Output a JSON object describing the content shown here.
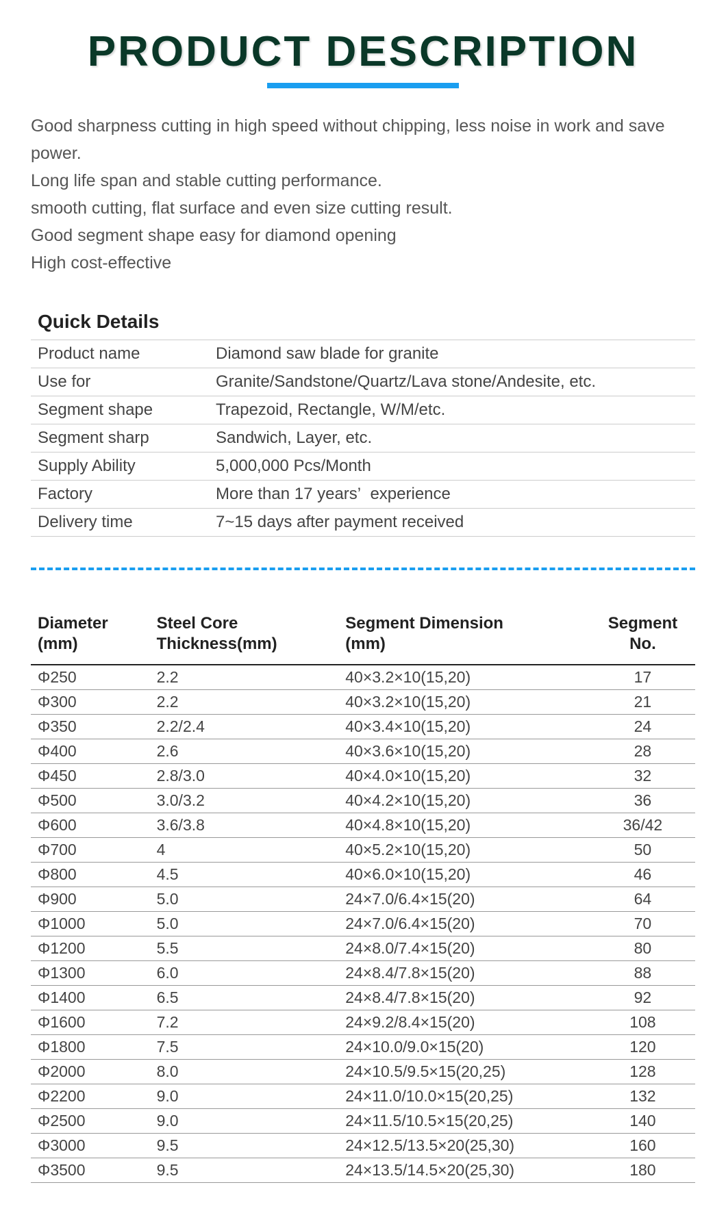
{
  "title": "PRODUCT DESCRIPTION",
  "description_lines": [
    "Good sharpness cutting in high speed without chipping, less noise in work and save power.",
    "Long life span and stable cutting performance.",
    "smooth cutting, flat surface and even size cutting result.",
    "Good segment shape easy for diamond opening",
    "High cost-effective"
  ],
  "quick_details": {
    "heading": "Quick Details",
    "rows": [
      {
        "label": "Product name",
        "value": "Diamond saw blade for granite"
      },
      {
        "label": "Use for",
        "value": "Granite/Sandstone/Quartz/Lava stone/Andesite, etc."
      },
      {
        "label": "Segment shape",
        "value": "Trapezoid, Rectangle, W/M/etc."
      },
      {
        "label": "Segment sharp",
        "value": "Sandwich, Layer, etc."
      },
      {
        "label": "Supply Ability",
        "value": "5,000,000 Pcs/Month"
      },
      {
        "label": "Factory",
        "value": "More than 17 years’  experience"
      },
      {
        "label": "Delivery time",
        "value": "7~15 days after payment received"
      }
    ]
  },
  "spec_table": {
    "columns": [
      "Diameter\n(mm)",
      "Steel Core\nThickness(mm)",
      "Segment Dimension\n(mm)",
      "Segment\nNo."
    ],
    "rows": [
      [
        "Φ250",
        "2.2",
        "40×3.2×10(15,20)",
        "17"
      ],
      [
        "Φ300",
        "2.2",
        "40×3.2×10(15,20)",
        "21"
      ],
      [
        "Φ350",
        "2.2/2.4",
        "40×3.4×10(15,20)",
        "24"
      ],
      [
        "Φ400",
        "2.6",
        "40×3.6×10(15,20)",
        "28"
      ],
      [
        "Φ450",
        "2.8/3.0",
        "40×4.0×10(15,20)",
        "32"
      ],
      [
        "Φ500",
        "3.0/3.2",
        "40×4.2×10(15,20)",
        "36"
      ],
      [
        "Φ600",
        "3.6/3.8",
        "40×4.8×10(15,20)",
        "36/42"
      ],
      [
        "Φ700",
        "4",
        "40×5.2×10(15,20)",
        "50"
      ],
      [
        "Φ800",
        "4.5",
        "40×6.0×10(15,20)",
        "46"
      ],
      [
        "Φ900",
        "5.0",
        "24×7.0/6.4×15(20)",
        "64"
      ],
      [
        "Φ1000",
        "5.0",
        "24×7.0/6.4×15(20)",
        "70"
      ],
      [
        "Φ1200",
        "5.5",
        "24×8.0/7.4×15(20)",
        "80"
      ],
      [
        "Φ1300",
        "6.0",
        "24×8.4/7.8×15(20)",
        "88"
      ],
      [
        "Φ1400",
        "6.5",
        "24×8.4/7.8×15(20)",
        "92"
      ],
      [
        "Φ1600",
        "7.2",
        "24×9.2/8.4×15(20)",
        "108"
      ],
      [
        "Φ1800",
        "7.5",
        "24×10.0/9.0×15(20)",
        "120"
      ],
      [
        "Φ2000",
        "8.0",
        "24×10.5/9.5×15(20,25)",
        "128"
      ],
      [
        "Φ2200",
        "9.0",
        "24×11.0/10.0×15(20,25)",
        "132"
      ],
      [
        "Φ2500",
        "9.0",
        "24×11.5/10.5×15(20,25)",
        "140"
      ],
      [
        "Φ3000",
        "9.5",
        "24×12.5/13.5×20(25,30)",
        "160"
      ],
      [
        "Φ3500",
        "9.5",
        "24×13.5/14.5×20(25,30)",
        "180"
      ]
    ]
  },
  "style": {
    "title_color": "#0a3828",
    "underline_color": "#1a9ef0",
    "dash_color": "#1a9ef0",
    "text_color": "#444444",
    "border_color": "#999999",
    "background": "#ffffff",
    "title_fontsize": 62,
    "body_fontsize": 24
  }
}
